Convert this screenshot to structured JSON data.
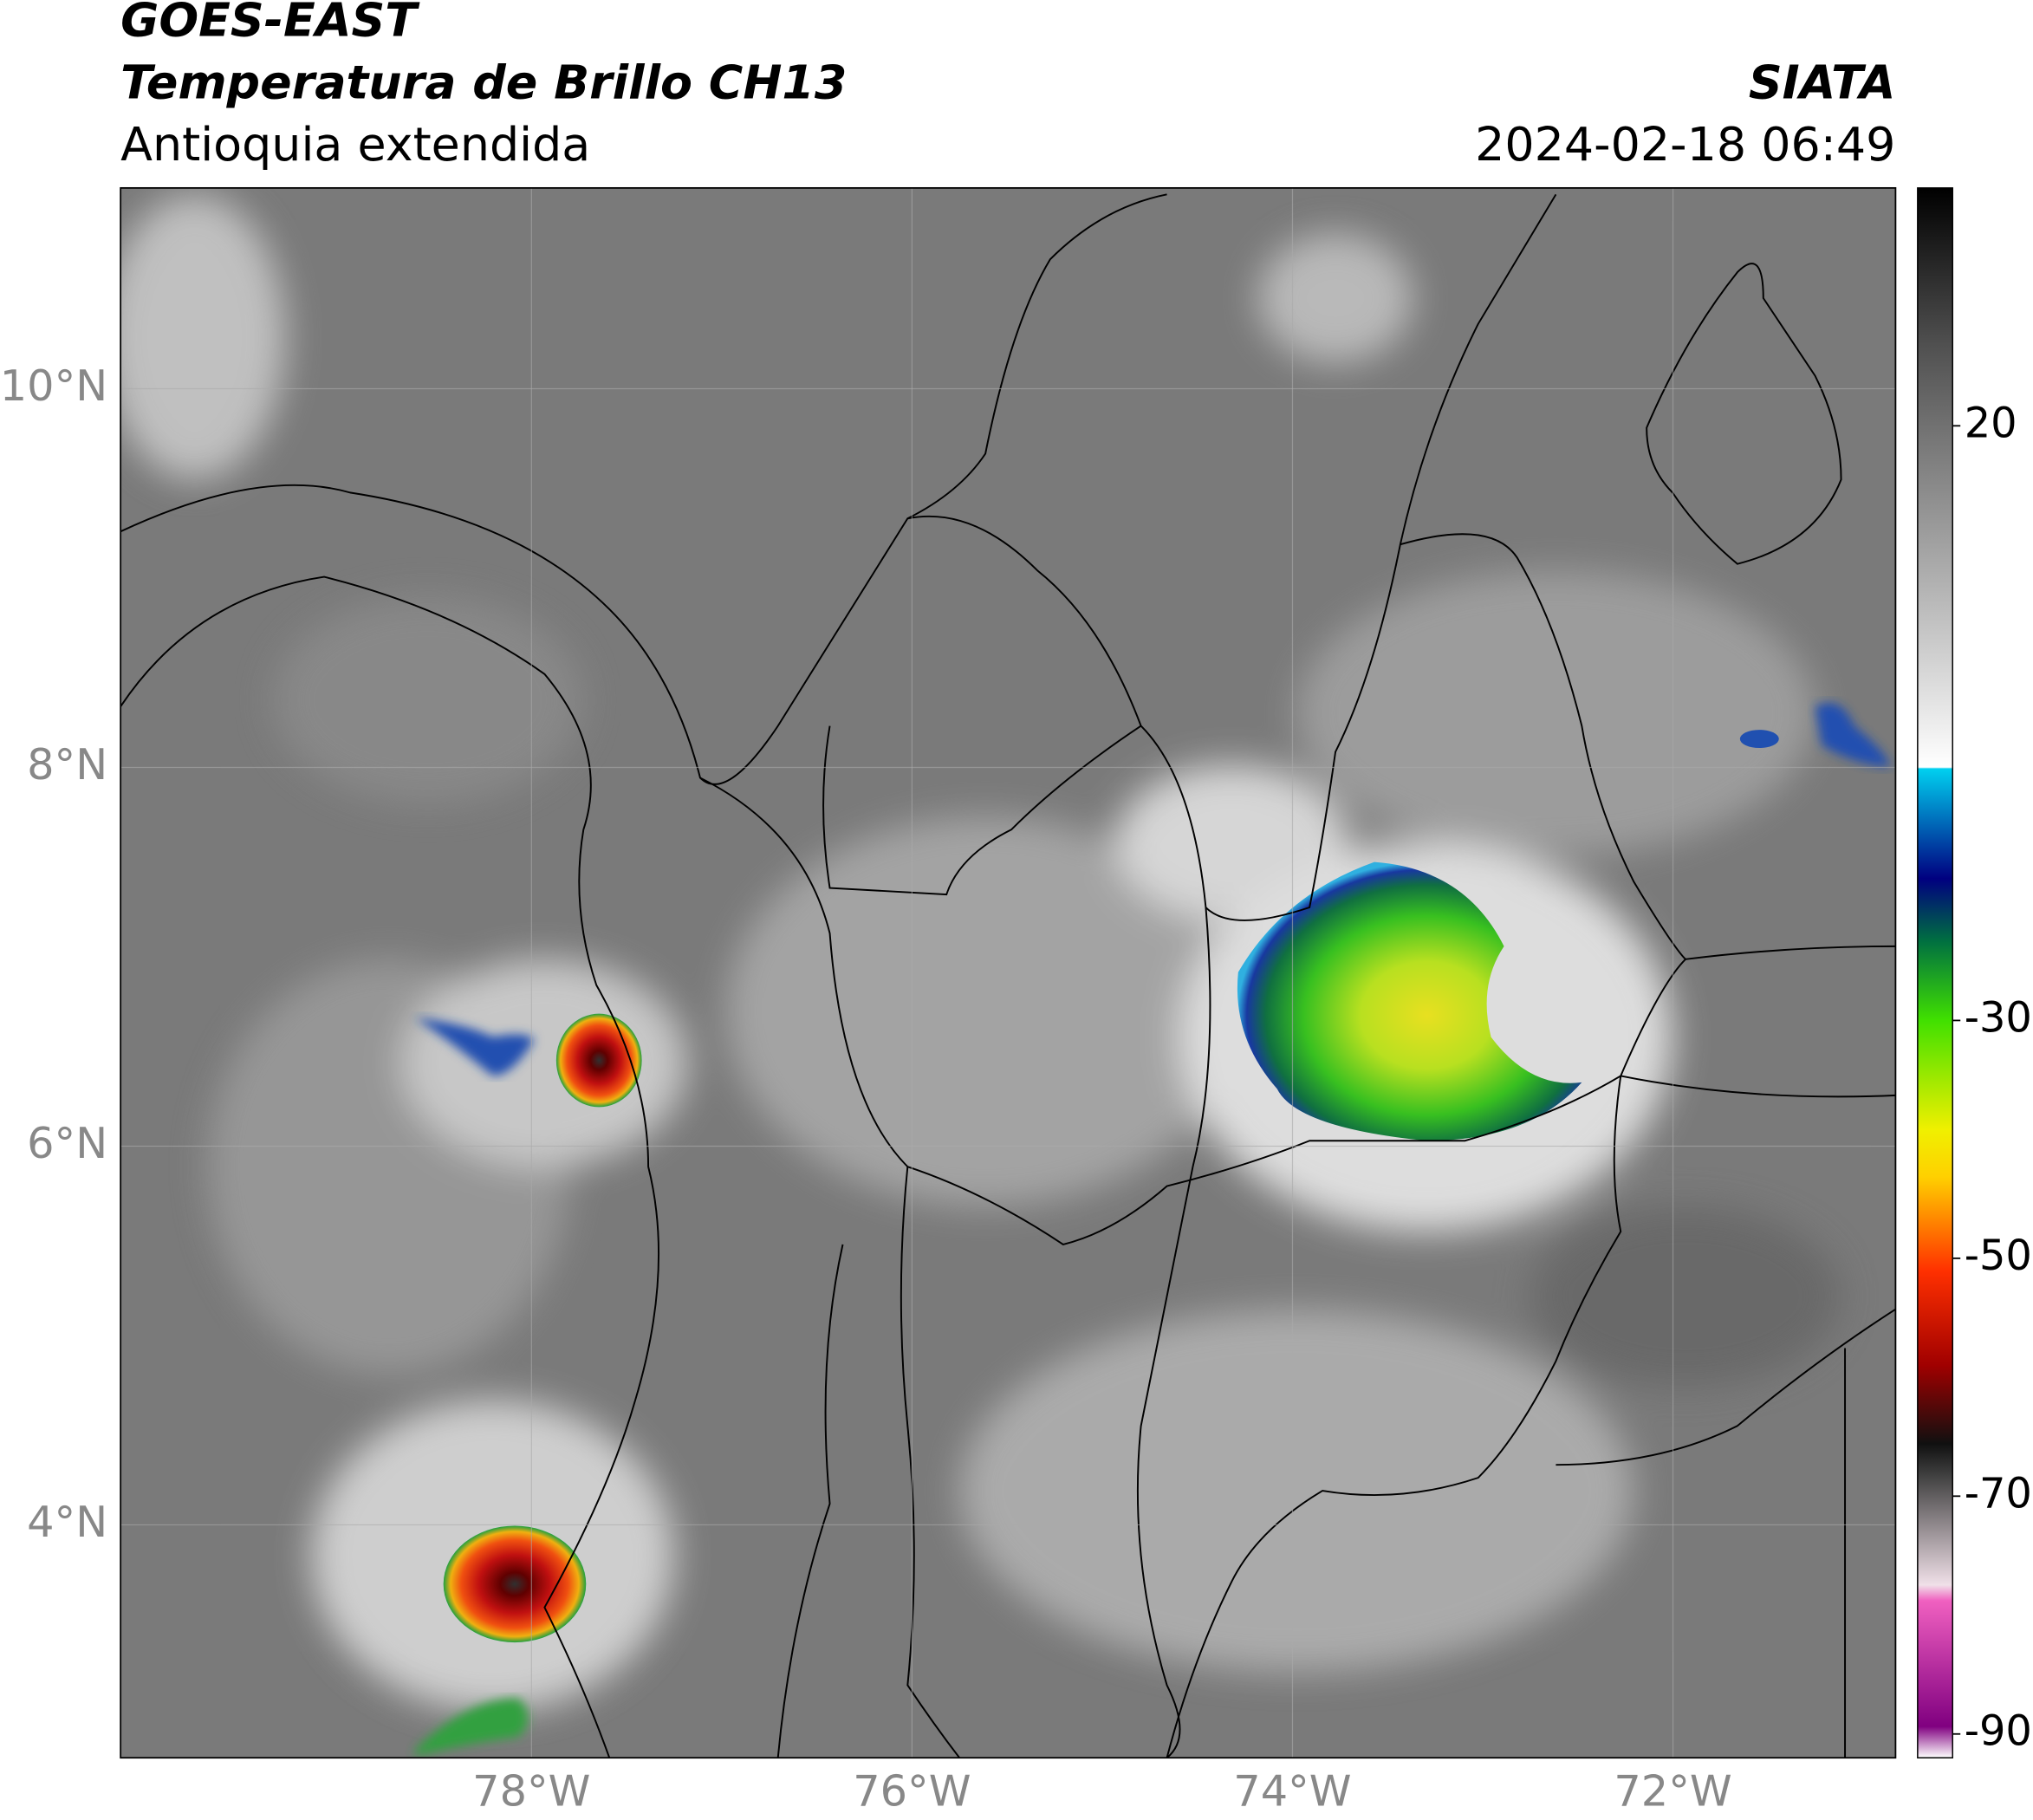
{
  "header": {
    "title": "GOES-EAST",
    "subtitle": "Temperatura de Brillo CH13",
    "region": "Antioquia extendida",
    "source": "SIATA",
    "datetime": "2024-02-18 06:49"
  },
  "map": {
    "lonlim": [
      -80.16,
      -70.83
    ],
    "latlim": [
      2.77,
      11.06
    ],
    "lon_ticks": [
      {
        "value": -78,
        "label": "78°W"
      },
      {
        "value": -76,
        "label": "76°W"
      },
      {
        "value": -74,
        "label": "74°W"
      },
      {
        "value": -72,
        "label": "72°W"
      }
    ],
    "lat_ticks": [
      {
        "value": 10,
        "label": "10°N"
      },
      {
        "value": 8,
        "label": "8°N"
      },
      {
        "value": 6,
        "label": "6°N"
      },
      {
        "value": 4,
        "label": "4°N"
      }
    ]
  },
  "colorbar": {
    "lim": [
      -92,
      40
    ],
    "ticks": [
      20,
      -30,
      -50,
      -70,
      -90
    ]
  }
}
